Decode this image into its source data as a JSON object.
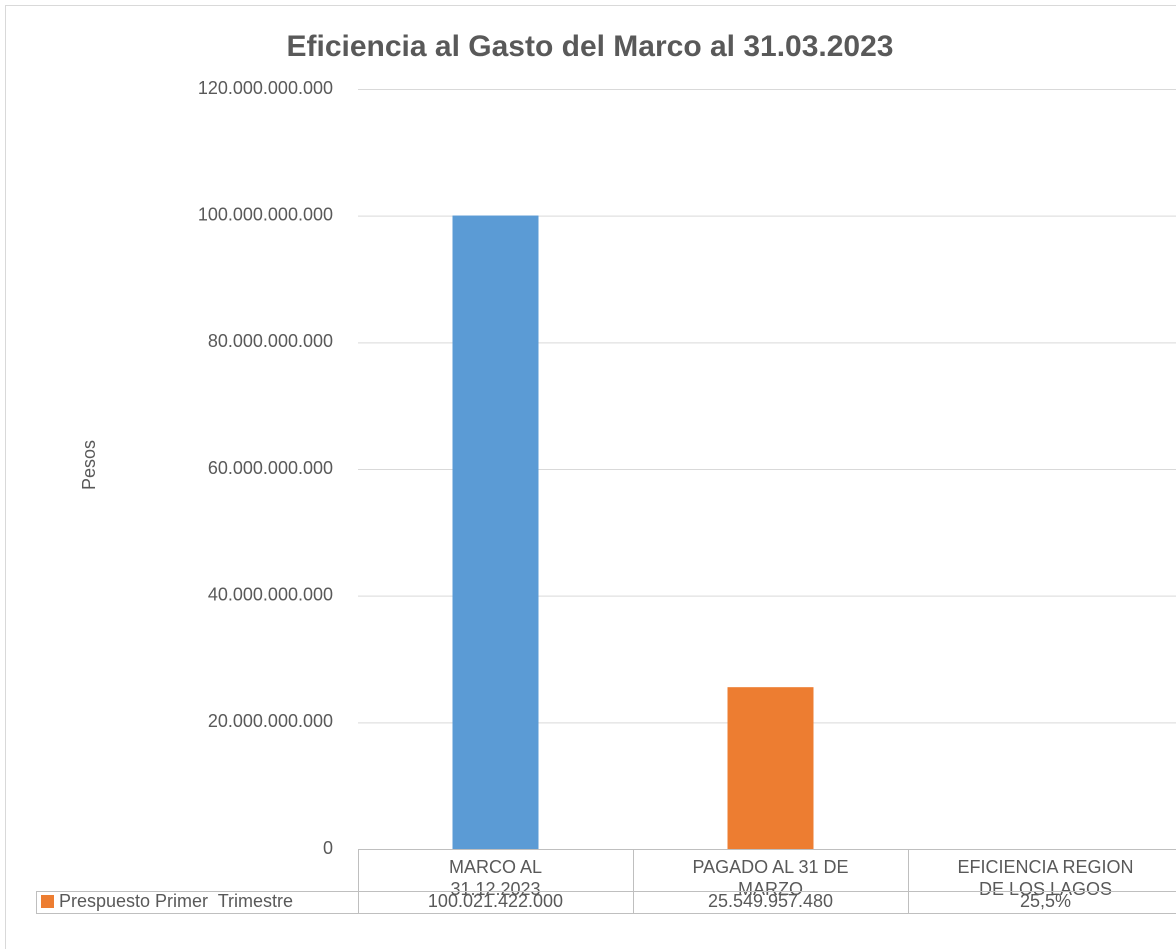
{
  "chart_data": {
    "type": "bar",
    "title": "Eficiencia al Gasto del Marco al 31.03.2023",
    "y_label": "Pesos",
    "categories": [
      "MARCO AL 31.12.2023",
      "PAGADO AL 31 DE MARZO",
      "EFICIENCIA REGION DE LOS LAGOS"
    ],
    "series": [
      {
        "name": "Prespuesto Primer  Trimestre",
        "color": "#ed7d31",
        "point_colors": [
          "#5b9bd5",
          "#ed7d31",
          "#a5a5a5"
        ],
        "values": [
          100021422000,
          25549957480,
          25.5
        ],
        "value_labels": [
          "100.021.422.000",
          "25.549.957.480",
          "25,5%"
        ]
      }
    ],
    "ylim": [
      0,
      120000000000
    ],
    "yticks": [
      0,
      {
        "value": 20000000000,
        "label": "20.000.000.000"
      },
      {
        "value": 40000000000,
        "label": "40.000.000.000"
      },
      {
        "value": 60000000000,
        "label": "60.000.000.000"
      },
      {
        "value": 80000000000,
        "label": "80.000.000.000"
      },
      {
        "value": 100000000000,
        "label": "100.000.000.000"
      },
      {
        "value": 120000000000,
        "label": "120.000.000.000"
      }
    ],
    "grid": true,
    "data_table": true
  }
}
